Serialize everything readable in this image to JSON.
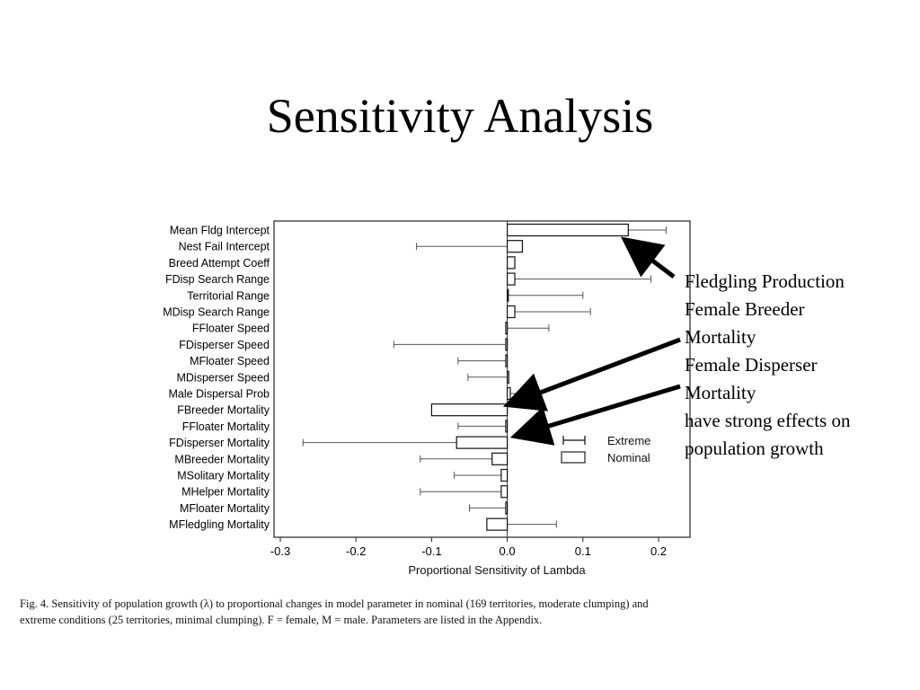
{
  "slide": {
    "title": "Sensitivity Analysis",
    "callout_lines": [
      "Fledgling Production",
      "Female Breeder",
      "Mortality",
      "Female Disperser",
      "Mortality",
      "have strong effects on",
      "population growth"
    ],
    "caption_lines": [
      "Fig. 4.  Sensitivity of population growth (λ) to proportional changes in model parameter in nominal (169 territories, moderate clumping) and",
      "extreme conditions (25 territories, minimal clumping). F = female, M = male. Parameters are listed in the Appendix."
    ]
  },
  "chart_data": {
    "type": "bar",
    "orientation": "horizontal",
    "xlabel": "Proportional Sensitivity of Lambda",
    "xlim": [
      -0.3,
      0.25
    ],
    "xticks": [
      -0.3,
      -0.2,
      -0.1,
      0.0,
      0.1,
      0.2
    ],
    "xtick_labels": [
      "-0.3",
      "-0.2",
      "-0.1",
      "0.0",
      "0.1",
      "0.2"
    ],
    "legend": {
      "placement": "right",
      "entries": [
        {
          "name": "Extreme",
          "symbol": "errorbar"
        },
        {
          "name": "Nominal",
          "symbol": "bar"
        }
      ]
    },
    "categories": [
      "Mean Fldg Intercept",
      "Nest Fail Intercept",
      "Breed Attempt Coeff",
      "FDisp Search Range",
      "Territorial Range",
      "MDisp Search Range",
      "FFloater Speed",
      "FDisperser Speed",
      "MFloater Speed",
      "MDisperser Speed",
      "Male Dispersal Prob",
      "FBreeder Mortality",
      "FFloater Mortality",
      "FDisperser Mortality",
      "MBreeder Mortality",
      "MSolitary Mortality",
      "MHelper Mortality",
      "MFloater Mortality",
      "MFledgling Mortality"
    ],
    "series": [
      {
        "name": "Nominal",
        "values": [
          0.16,
          0.02,
          0.01,
          0.01,
          0.0,
          0.01,
          -0.002,
          -0.002,
          -0.002,
          0.002,
          0.004,
          -0.1,
          -0.002,
          -0.067,
          -0.02,
          -0.008,
          -0.008,
          -0.002,
          -0.027
        ]
      },
      {
        "name": "Extreme",
        "values": [
          0.21,
          -0.12,
          0.01,
          0.19,
          0.1,
          0.11,
          0.055,
          -0.15,
          -0.065,
          -0.052,
          0.02,
          -0.08,
          -0.065,
          -0.27,
          -0.115,
          -0.07,
          -0.115,
          -0.05,
          0.065
        ]
      }
    ]
  },
  "style": {
    "text_color": "#000000",
    "bar_fill": "#ffffff",
    "bar_stroke": "#111111",
    "whisker_stroke": "#555555",
    "arrow_color": "#000000"
  }
}
